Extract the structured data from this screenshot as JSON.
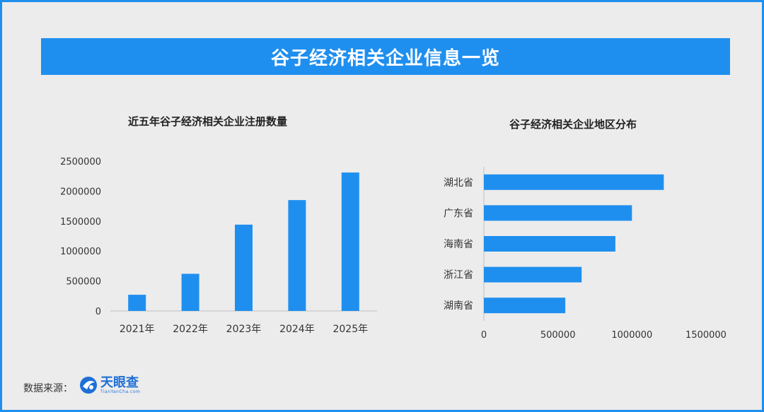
{
  "title": "谷子经济相关企业信息一览",
  "footer": {
    "source_label": "数据来源：",
    "logo_main": "天眼查",
    "logo_sub": "TianYanCha.com"
  },
  "chart_data": [
    {
      "type": "bar",
      "title": "近五年谷子经济相关企业注册数量",
      "categories": [
        "2021年",
        "2022年",
        "2023年",
        "2024年",
        "2025年"
      ],
      "values": [
        270000,
        620000,
        1440000,
        1850000,
        2310000
      ],
      "ylim": [
        0,
        2500000
      ],
      "yticks": [
        0,
        500000,
        1000000,
        1500000,
        2000000,
        2500000
      ],
      "grid": false,
      "color": "#1f8fef"
    },
    {
      "type": "bar",
      "orientation": "horizontal",
      "title": "谷子经济相关企业地区分布",
      "categories": [
        "湖北省",
        "广东省",
        "海南省",
        "浙江省",
        "湖南省"
      ],
      "values": [
        1215000,
        1000000,
        888000,
        660000,
        550000
      ],
      "xlim": [
        0,
        1500000
      ],
      "xticks": [
        0,
        500000,
        1000000,
        1500000
      ],
      "grid": false,
      "color": "#1f8fef"
    }
  ]
}
